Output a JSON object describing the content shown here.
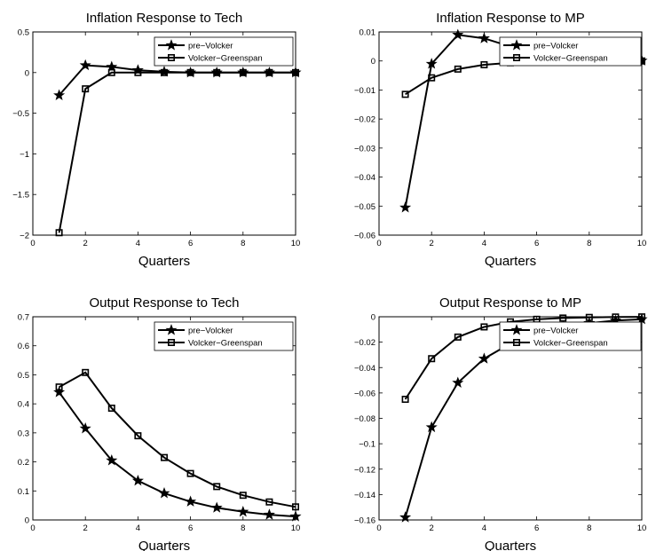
{
  "chart_data": [
    {
      "type": "line",
      "title": "Inflation Response to Tech",
      "xlabel": "Quarters",
      "ylabel": "",
      "xlim": [
        0,
        10
      ],
      "ylim": [
        -2,
        0.5
      ],
      "xticks": [
        0,
        2,
        4,
        6,
        8,
        10
      ],
      "yticks": [
        -2,
        -1.5,
        -1,
        -0.5,
        0,
        0.5
      ],
      "xtick_labels": [
        "0",
        "2",
        "4",
        "6",
        "8",
        "10"
      ],
      "ytick_labels": [
        "−2",
        "−1.5",
        "−1",
        "−0.5",
        "0",
        "0.5"
      ],
      "grid": false,
      "legend": "top-right",
      "x": [
        1,
        2,
        3,
        4,
        5,
        6,
        7,
        8,
        9,
        10
      ],
      "series": [
        {
          "name": "pre−Volcker",
          "marker": "star",
          "values": [
            -0.28,
            0.09,
            0.07,
            0.03,
            0.01,
            0.0,
            0.0,
            0.0,
            0.0,
            0.0
          ]
        },
        {
          "name": "Volcker−Greenspan",
          "marker": "square",
          "values": [
            -1.97,
            -0.2,
            0.0,
            0.0,
            0.0,
            0.0,
            0.0,
            0.0,
            0.0,
            0.0
          ]
        }
      ]
    },
    {
      "type": "line",
      "title": "Inflation Response to MP",
      "xlabel": "Quarters",
      "ylabel": "",
      "xlim": [
        0,
        10
      ],
      "ylim": [
        -0.06,
        0.01
      ],
      "xticks": [
        0,
        2,
        4,
        6,
        8,
        10
      ],
      "yticks": [
        -0.06,
        -0.05,
        -0.04,
        -0.03,
        -0.02,
        -0.01,
        0,
        0.01
      ],
      "xtick_labels": [
        "0",
        "2",
        "4",
        "6",
        "8",
        "10"
      ],
      "ytick_labels": [
        "−0.06",
        "−0.05",
        "−0.04",
        "−0.03",
        "−0.02",
        "−0.01",
        "0",
        "0.01"
      ],
      "grid": false,
      "legend": "top-right",
      "x": [
        1,
        2,
        3,
        4,
        5,
        6,
        7,
        8,
        9,
        10
      ],
      "series": [
        {
          "name": "pre−Volcker",
          "marker": "star",
          "values": [
            -0.0505,
            -0.001,
            0.009,
            0.0078,
            0.005,
            0.003,
            0.0018,
            0.001,
            0.0004,
            0.0001
          ]
        },
        {
          "name": "Volcker−Greenspan",
          "marker": "square",
          "values": [
            -0.0115,
            -0.0058,
            -0.0028,
            -0.0013,
            -0.0006,
            -0.0003,
            -0.0001,
            0.0,
            0.0,
            0.0
          ]
        }
      ]
    },
    {
      "type": "line",
      "title": "Output Response to Tech",
      "xlabel": "Quarters",
      "ylabel": "",
      "xlim": [
        0,
        10
      ],
      "ylim": [
        0,
        0.7
      ],
      "xticks": [
        0,
        2,
        4,
        6,
        8,
        10
      ],
      "yticks": [
        0,
        0.1,
        0.2,
        0.3,
        0.4,
        0.5,
        0.6,
        0.7
      ],
      "xtick_labels": [
        "0",
        "2",
        "4",
        "6",
        "8",
        "10"
      ],
      "ytick_labels": [
        "0",
        "0.1",
        "0.2",
        "0.3",
        "0.4",
        "0.5",
        "0.6",
        "0.7"
      ],
      "grid": false,
      "legend": "top-right",
      "x": [
        1,
        2,
        3,
        4,
        5,
        6,
        7,
        8,
        9,
        10
      ],
      "series": [
        {
          "name": "pre−Volcker",
          "marker": "star",
          "values": [
            0.44,
            0.315,
            0.205,
            0.135,
            0.092,
            0.063,
            0.042,
            0.028,
            0.018,
            0.012
          ]
        },
        {
          "name": "Volcker−Greenspan",
          "marker": "square",
          "values": [
            0.458,
            0.508,
            0.385,
            0.29,
            0.215,
            0.16,
            0.115,
            0.085,
            0.062,
            0.045
          ]
        }
      ]
    },
    {
      "type": "line",
      "title": "Output Response to MP",
      "xlabel": "Quarters",
      "ylabel": "",
      "xlim": [
        0,
        10
      ],
      "ylim": [
        -0.16,
        0
      ],
      "xticks": [
        0,
        2,
        4,
        6,
        8,
        10
      ],
      "yticks": [
        -0.16,
        -0.14,
        -0.12,
        -0.1,
        -0.08,
        -0.06,
        -0.04,
        -0.02,
        0
      ],
      "xtick_labels": [
        "0",
        "2",
        "4",
        "6",
        "8",
        "10"
      ],
      "ytick_labels": [
        "−0.16",
        "−0.14",
        "−0.12",
        "−0.1",
        "−0.08",
        "−0.06",
        "−0.04",
        "−0.02",
        "0"
      ],
      "grid": false,
      "legend": "top-right",
      "x": [
        1,
        2,
        3,
        4,
        5,
        6,
        7,
        8,
        9,
        10
      ],
      "series": [
        {
          "name": "pre−Volcker",
          "marker": "star",
          "values": [
            -0.158,
            -0.087,
            -0.052,
            -0.033,
            -0.021,
            -0.013,
            -0.008,
            -0.005,
            -0.003,
            -0.002
          ]
        },
        {
          "name": "Volcker−Greenspan",
          "marker": "square",
          "values": [
            -0.065,
            -0.033,
            -0.016,
            -0.008,
            -0.004,
            -0.002,
            -0.001,
            -0.0005,
            -0.0002,
            -0.0001
          ]
        }
      ]
    }
  ]
}
